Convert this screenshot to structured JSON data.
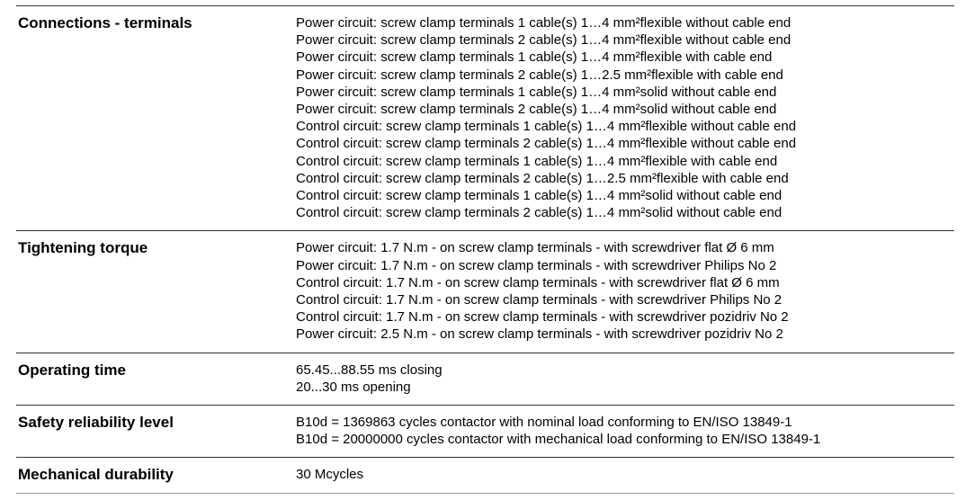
{
  "rows": [
    {
      "label": "Connections - terminals",
      "values": [
        "Power circuit: screw clamp terminals 1 cable(s) 1…4 mm²flexible without cable end",
        "Power circuit: screw clamp terminals 2 cable(s) 1…4 mm²flexible without cable end",
        "Power circuit: screw clamp terminals 1 cable(s) 1…4 mm²flexible with cable end",
        "Power circuit: screw clamp terminals 2 cable(s) 1…2.5 mm²flexible with cable end",
        "Power circuit: screw clamp terminals 1 cable(s) 1…4 mm²solid without cable end",
        "Power circuit: screw clamp terminals 2 cable(s) 1…4 mm²solid without cable end",
        "Control circuit: screw clamp terminals 1 cable(s) 1…4 mm²flexible without cable end",
        "Control circuit: screw clamp terminals 2 cable(s) 1…4 mm²flexible without cable end",
        "Control circuit: screw clamp terminals 1 cable(s) 1…4 mm²flexible with cable end",
        "Control circuit: screw clamp terminals 2 cable(s) 1…2.5 mm²flexible with cable end",
        "Control circuit: screw clamp terminals 1 cable(s) 1…4 mm²solid without cable end",
        "Control circuit: screw clamp terminals 2 cable(s) 1…4 mm²solid without cable end"
      ]
    },
    {
      "label": "Tightening torque",
      "values": [
        "Power circuit: 1.7 N.m - on screw clamp terminals - with screwdriver flat Ø 6 mm",
        "Power circuit: 1.7 N.m - on screw clamp terminals - with screwdriver Philips No 2",
        "Control circuit: 1.7 N.m - on screw clamp terminals - with screwdriver flat Ø 6 mm",
        "Control circuit: 1.7 N.m - on screw clamp terminals - with screwdriver Philips No 2",
        "Control circuit: 1.7 N.m - on screw clamp terminals - with screwdriver pozidriv No 2",
        "Power circuit: 2.5 N.m - on screw clamp terminals - with screwdriver pozidriv No 2"
      ]
    },
    {
      "label": "Operating time",
      "values": [
        "65.45...88.55 ms closing",
        "20...30 ms opening"
      ]
    },
    {
      "label": "Safety reliability level",
      "values": [
        "B10d = 1369863 cycles contactor with nominal load conforming to EN/ISO 13849-1",
        "B10d = 20000000 cycles contactor with mechanical load conforming to EN/ISO 13849-1"
      ]
    },
    {
      "label": "Mechanical durability",
      "values": [
        "30 Mcycles"
      ]
    }
  ]
}
